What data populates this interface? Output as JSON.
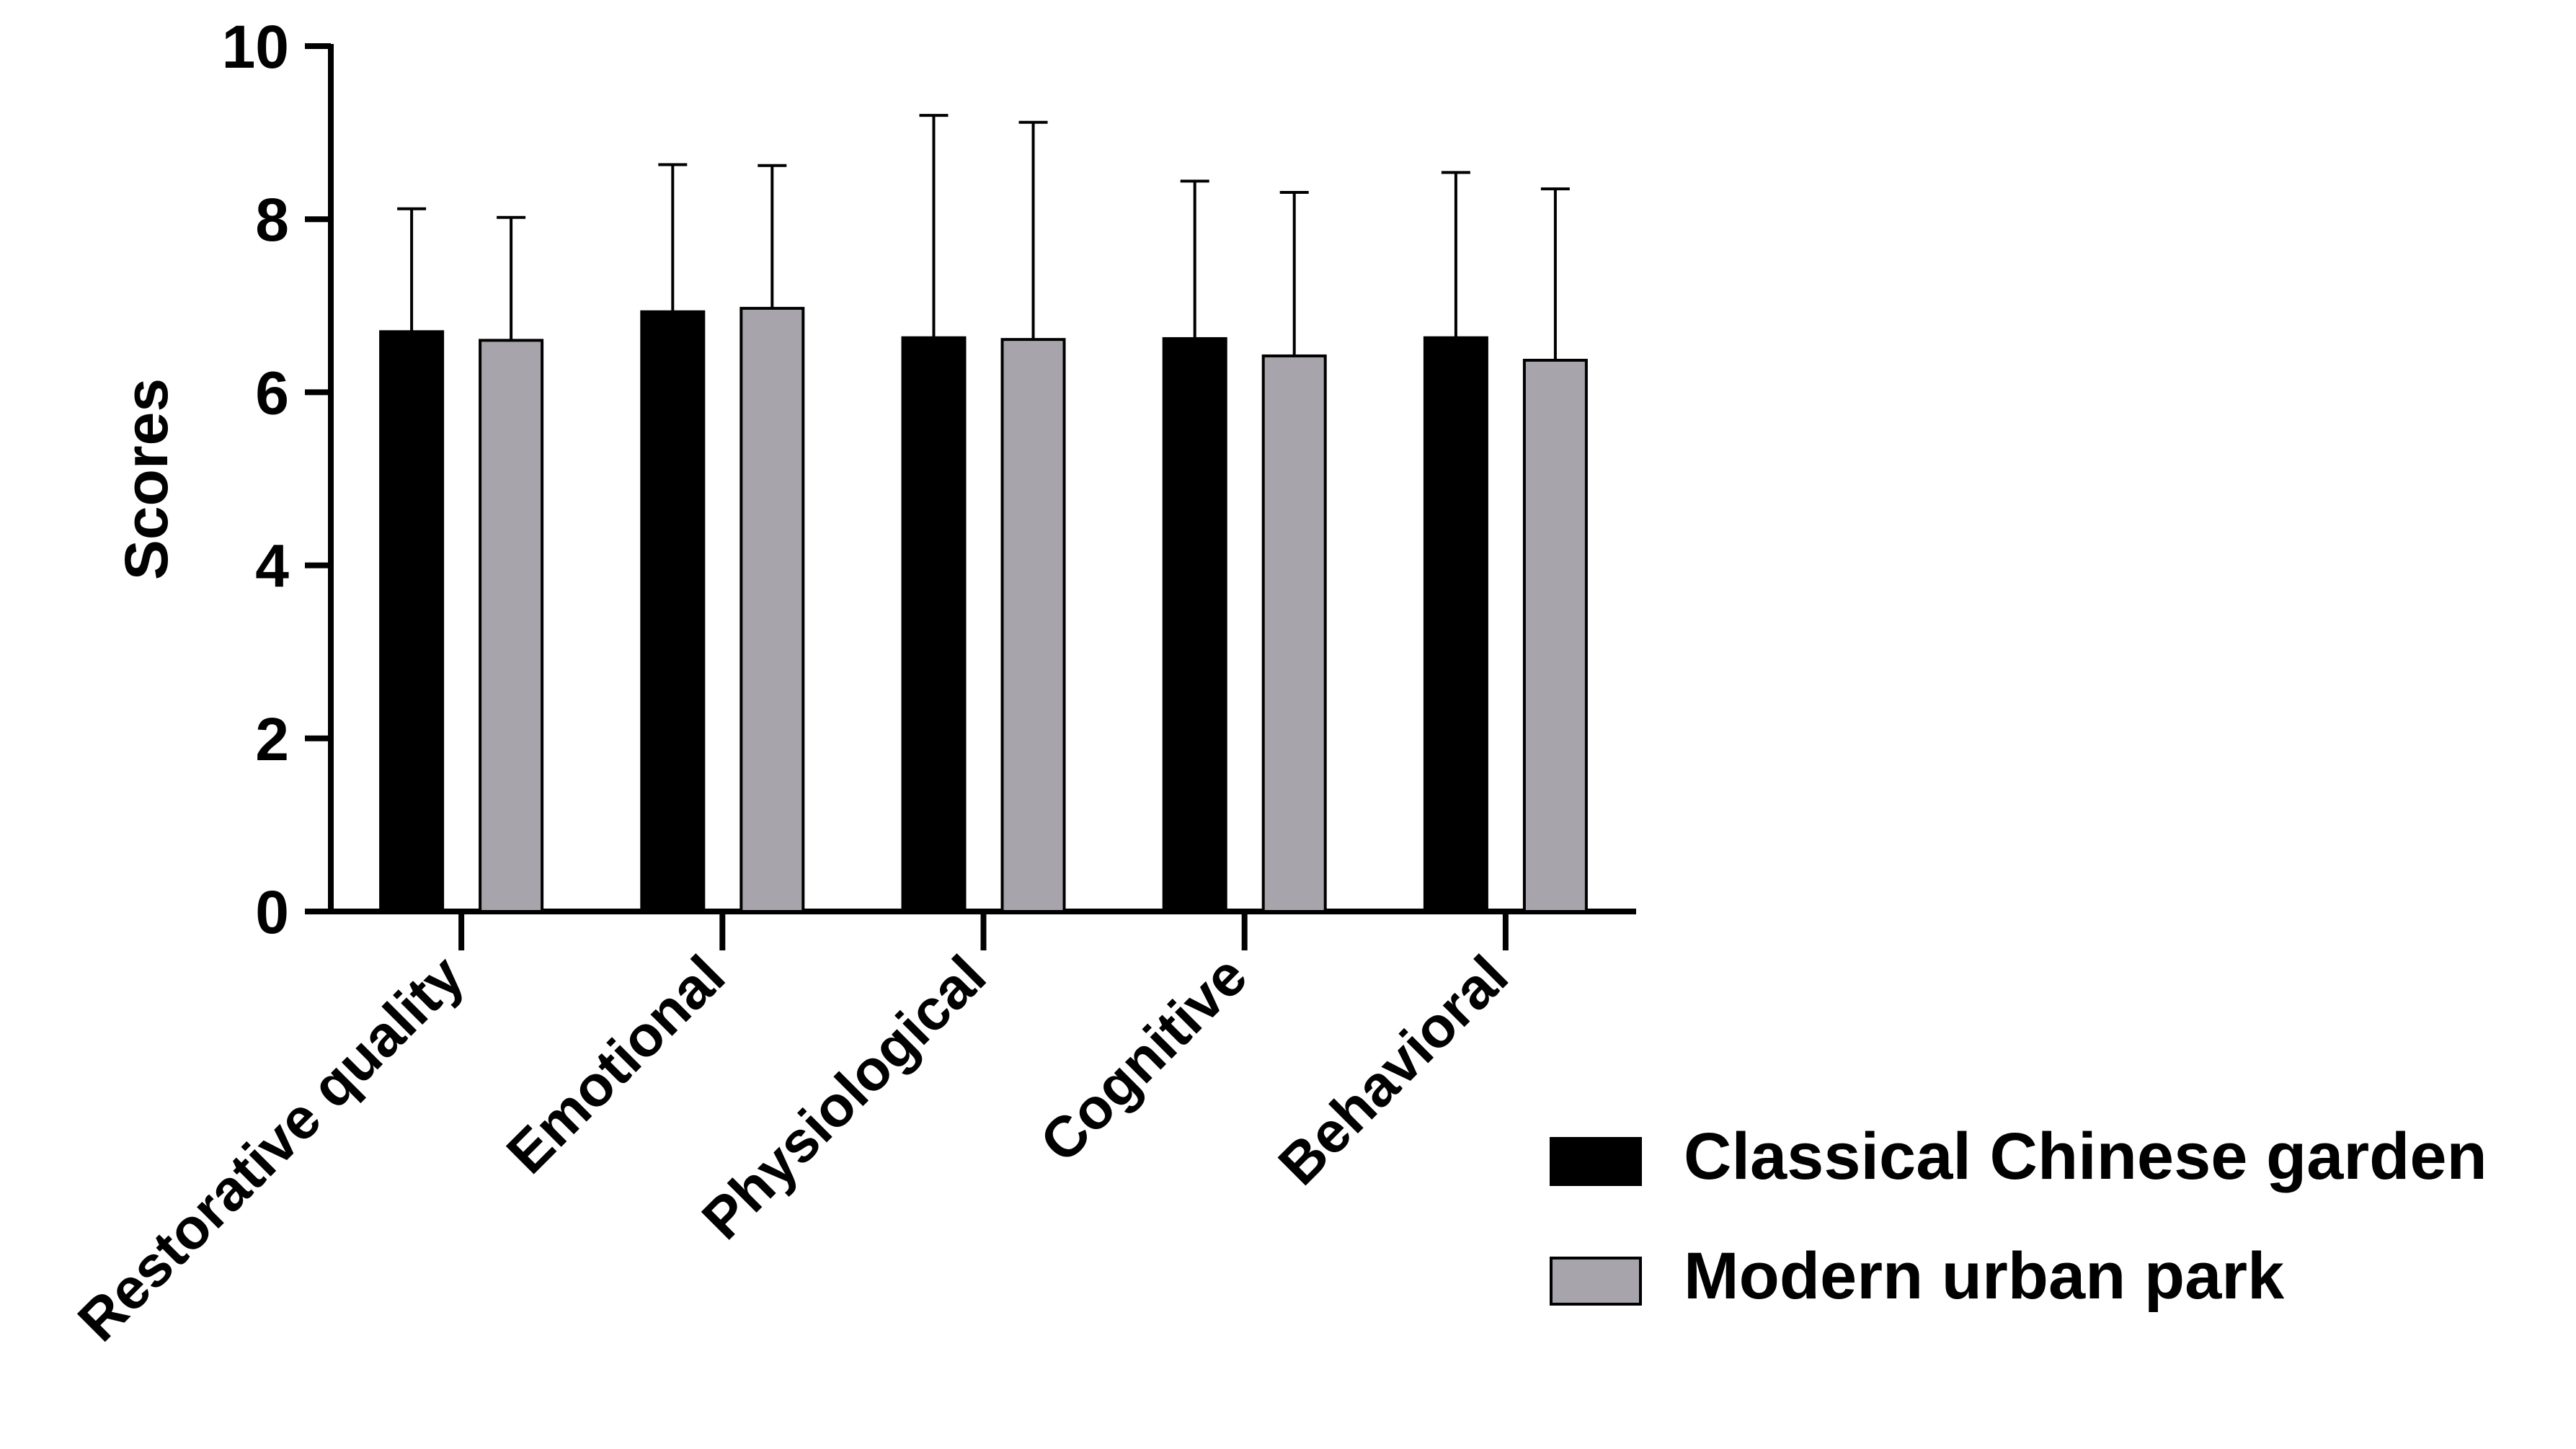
{
  "chart_data": {
    "type": "bar",
    "title": "",
    "xlabel": "",
    "ylabel": "Scores",
    "ylim": [
      0,
      10
    ],
    "yticks": [
      "0",
      "2",
      "4",
      "6",
      "8",
      "10"
    ],
    "categories": [
      "Restorative quality",
      "Emotional",
      "Physiological",
      "Cognitive",
      "Behavioral"
    ],
    "series": [
      {
        "name": "Classical Chinese garden",
        "color": "#000000",
        "values": [
          6.7,
          6.93,
          6.63,
          6.62,
          6.63
        ],
        "error": [
          1.42,
          1.7,
          2.57,
          1.82,
          1.91
        ]
      },
      {
        "name": "Modern urban park",
        "color": "#a7a5ab",
        "values": [
          6.6,
          6.97,
          6.61,
          6.42,
          6.37
        ],
        "error": [
          1.42,
          1.65,
          2.51,
          1.89,
          1.98
        ]
      }
    ],
    "legend_position": "bottom-right",
    "grid": false,
    "error_bars": "one-sided upper"
  }
}
